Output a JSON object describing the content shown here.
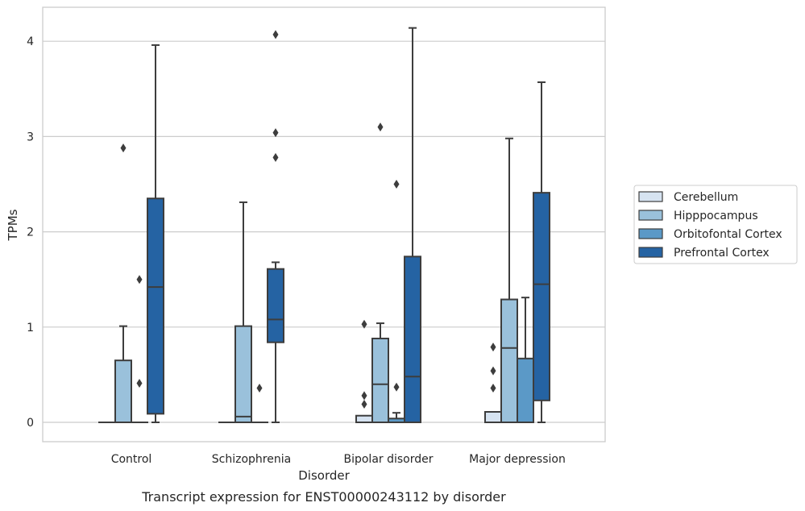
{
  "caption": "Transcript expression for ENST00000243112 by disorder",
  "chart_data": {
    "type": "box",
    "xlabel": "Disorder",
    "ylabel": "TPMs",
    "ylim": [
      -0.2,
      4.35
    ],
    "yticks": [
      0,
      1,
      2,
      3,
      4
    ],
    "grid": "horizontal",
    "legend_placement": "right",
    "categories": [
      "Control",
      "Schizophrenia",
      "Bipolar disorder",
      "Major depression"
    ],
    "series": [
      {
        "name": "Cerebellum",
        "color": "#d6e3f1",
        "boxes": [
          {
            "min": 0,
            "q1": 0,
            "median": 0,
            "q3": 0,
            "max": 0,
            "outliers": []
          },
          {
            "min": 0,
            "q1": 0,
            "median": 0,
            "q3": 0,
            "max": 0,
            "outliers": []
          },
          {
            "min": 0,
            "q1": 0,
            "median": 0,
            "q3": 0.07,
            "max": 0.07,
            "outliers": [
              0.19,
              0.28,
              1.03
            ]
          },
          {
            "min": 0,
            "q1": 0,
            "median": 0.11,
            "q3": 0.11,
            "max": 0.11,
            "outliers": [
              0.36,
              0.54,
              0.79
            ]
          }
        ]
      },
      {
        "name": "Hipppocampus",
        "color": "#9ac1db",
        "boxes": [
          {
            "min": 0,
            "q1": 0,
            "median": 0,
            "q3": 0.65,
            "max": 1.01,
            "outliers": [
              2.88
            ]
          },
          {
            "min": 0,
            "q1": 0,
            "median": 0.06,
            "q3": 1.01,
            "max": 2.31,
            "outliers": []
          },
          {
            "min": 0,
            "q1": 0,
            "median": 0.4,
            "q3": 0.88,
            "max": 1.04,
            "outliers": [
              3.1
            ]
          },
          {
            "min": 0,
            "q1": 0,
            "median": 0.78,
            "q3": 1.29,
            "max": 2.98,
            "outliers": []
          }
        ]
      },
      {
        "name": "Orbitofontal Cortex",
        "color": "#5b99c7",
        "boxes": [
          {
            "min": 0,
            "q1": 0,
            "median": 0,
            "q3": 0,
            "max": 0,
            "outliers": [
              0.41,
              1.5
            ]
          },
          {
            "min": 0,
            "q1": 0,
            "median": 0,
            "q3": 0,
            "max": 0,
            "outliers": [
              0.36
            ]
          },
          {
            "min": 0,
            "q1": 0,
            "median": 0,
            "q3": 0.04,
            "max": 0.1,
            "outliers": [
              0.37,
              2.5
            ]
          },
          {
            "min": 0,
            "q1": 0,
            "median": 0,
            "q3": 0.67,
            "max": 1.31,
            "outliers": []
          }
        ]
      },
      {
        "name": "Prefrontal Cortex",
        "color": "#2563a3",
        "boxes": [
          {
            "min": 0,
            "q1": 0.09,
            "median": 1.42,
            "q3": 2.35,
            "max": 3.96,
            "outliers": []
          },
          {
            "min": 0,
            "q1": 0.84,
            "median": 1.08,
            "q3": 1.61,
            "max": 1.68,
            "outliers": [
              2.78,
              3.04,
              4.07
            ]
          },
          {
            "min": 0,
            "q1": 0,
            "median": 0.48,
            "q3": 1.74,
            "max": 4.14,
            "outliers": []
          },
          {
            "min": 0,
            "q1": 0.23,
            "median": 1.45,
            "q3": 2.41,
            "max": 3.57,
            "outliers": []
          }
        ]
      }
    ]
  }
}
